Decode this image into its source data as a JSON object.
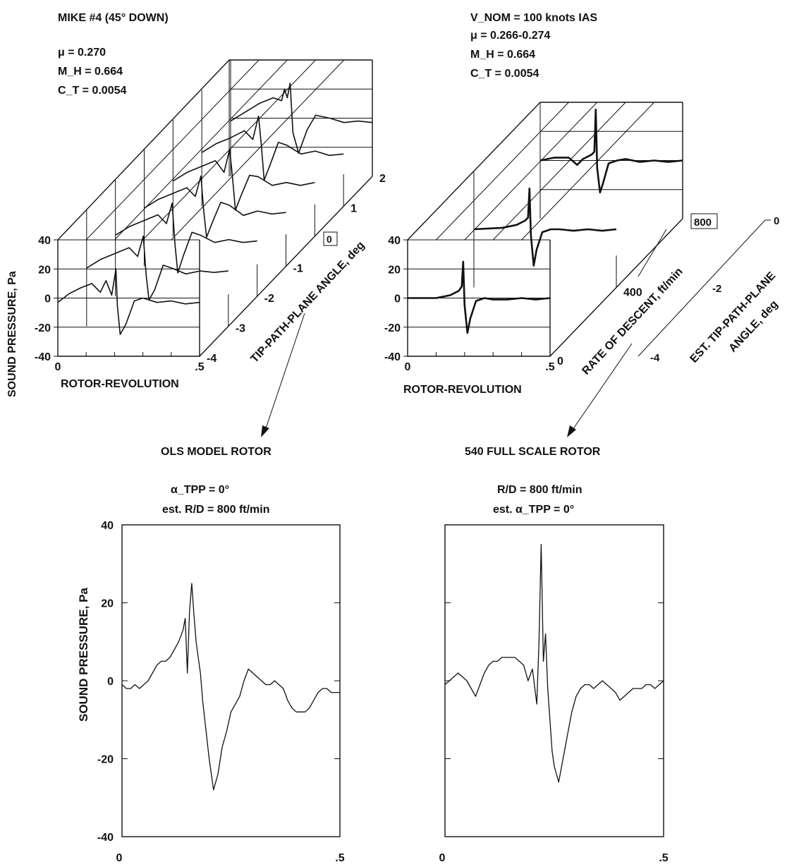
{
  "chart_data": [
    {
      "type": "line",
      "panel": "top-left-3d",
      "title": "MIKE #4 (45° DOWN)",
      "parameters": [
        "μ = 0.270",
        "M_H = 0.664",
        "C_T = 0.0054"
      ],
      "xlabel": "ROTOR-REVOLUTION",
      "ylabel": "SOUND PRESSURE, Pa",
      "zlabel": "TIP-PATH-PLANE ANGLE, deg",
      "xlim": [
        0,
        0.5
      ],
      "ylim": [
        -40,
        40
      ],
      "x_ticks": [
        "0",
        ".5"
      ],
      "y_ticks": [
        "40",
        "20",
        "0",
        "-20",
        "-40"
      ],
      "z_ticks": [
        "-4",
        "-3",
        "-2",
        "-1",
        "0",
        "1",
        "2"
      ],
      "highlight": "0",
      "series": [
        {
          "depth": -4,
          "x": [
            0,
            0.04,
            0.08,
            0.12,
            0.15,
            0.17,
            0.19,
            0.205,
            0.21,
            0.22,
            0.24,
            0.27,
            0.3,
            0.35,
            0.4,
            0.45,
            0.5
          ],
          "y": [
            -3,
            3,
            7,
            10,
            4,
            12,
            2,
            20,
            -5,
            -25,
            -18,
            -2,
            0,
            -3,
            -2,
            -4,
            -3
          ]
        },
        {
          "depth": -3,
          "x": [
            0,
            0.05,
            0.1,
            0.15,
            0.18,
            0.2,
            0.21,
            0.22,
            0.24,
            0.27,
            0.3,
            0.35,
            0.4,
            0.45,
            0.5
          ],
          "y": [
            0,
            6,
            10,
            14,
            8,
            22,
            -5,
            -22,
            -15,
            2,
            0,
            -4,
            -2,
            -3,
            -2
          ]
        },
        {
          "depth": -2,
          "x": [
            0,
            0.05,
            0.1,
            0.15,
            0.18,
            0.2,
            0.21,
            0.22,
            0.24,
            0.27,
            0.3,
            0.35,
            0.4,
            0.45,
            0.5
          ],
          "y": [
            2,
            8,
            12,
            16,
            10,
            24,
            -4,
            -24,
            -12,
            4,
            2,
            -3,
            -1,
            -3,
            -2
          ]
        },
        {
          "depth": -1,
          "x": [
            0,
            0.05,
            0.1,
            0.15,
            0.18,
            0.2,
            0.21,
            0.22,
            0.24,
            0.27,
            0.3,
            0.35,
            0.4,
            0.45,
            0.5
          ],
          "y": [
            0,
            6,
            10,
            14,
            8,
            22,
            -2,
            -20,
            -10,
            4,
            2,
            -5,
            -2,
            -4,
            -3
          ]
        },
        {
          "depth": 0,
          "x": [
            0,
            0.05,
            0.1,
            0.15,
            0.18,
            0.2,
            0.21,
            0.22,
            0.24,
            0.27,
            0.3,
            0.35,
            0.4,
            0.45,
            0.5
          ],
          "y": [
            -2,
            4,
            8,
            12,
            4,
            20,
            0,
            -22,
            -12,
            2,
            1,
            -5,
            -3,
            -5,
            -3
          ]
        },
        {
          "depth": 1,
          "x": [
            0,
            0.05,
            0.1,
            0.15,
            0.18,
            0.2,
            0.21,
            0.22,
            0.24,
            0.27,
            0.3,
            0.35,
            0.4,
            0.45,
            0.5
          ],
          "y": [
            -3,
            3,
            7,
            12,
            6,
            22,
            2,
            -22,
            -12,
            4,
            2,
            -4,
            -2,
            -5,
            -4
          ]
        },
        {
          "depth": 2,
          "x": [
            0,
            0.05,
            0.1,
            0.15,
            0.18,
            0.19,
            0.2,
            0.21,
            0.22,
            0.24,
            0.27,
            0.3,
            0.35,
            0.4,
            0.45,
            0.5
          ],
          "y": [
            -2,
            4,
            10,
            14,
            12,
            20,
            14,
            24,
            -10,
            -24,
            -8,
            2,
            0,
            -3,
            -2,
            -3
          ]
        }
      ]
    },
    {
      "type": "line",
      "panel": "top-right-3d",
      "parameters": [
        "V_NOM = 100 knots IAS",
        "μ = 0.266-0.274",
        "M_H = 0.664",
        "C_T = 0.0054"
      ],
      "xlabel": "ROTOR-REVOLUTION",
      "ylabel": "",
      "zlabel": "RATE OF DESCENT, ft/min",
      "z2label": "EST. TIP-PATH-PLANE ANGLE, deg",
      "xlim": [
        0,
        0.5
      ],
      "ylim": [
        -40,
        40
      ],
      "x_ticks": [
        "0",
        ".5"
      ],
      "y_ticks": [
        "40",
        "20",
        "0",
        "-20",
        "-40"
      ],
      "z_ticks": [
        "0",
        "400",
        "800"
      ],
      "z2_ticks": [
        "0",
        "-2",
        "-4"
      ],
      "highlight": "800",
      "series": [
        {
          "depth": 0,
          "x": [
            0,
            0.1,
            0.15,
            0.18,
            0.19,
            0.195,
            0.2,
            0.21,
            0.22,
            0.24,
            0.27,
            0.3,
            0.35,
            0.4,
            0.45,
            0.5
          ],
          "y": [
            0,
            0,
            2,
            5,
            8,
            25,
            -5,
            -24,
            -14,
            -2,
            0,
            -1,
            -1,
            0,
            -1,
            0
          ]
        },
        {
          "depth": 400,
          "x": [
            0,
            0.1,
            0.15,
            0.18,
            0.19,
            0.195,
            0.2,
            0.21,
            0.22,
            0.24,
            0.27,
            0.3,
            0.35,
            0.4,
            0.45,
            0.5
          ],
          "y": [
            0,
            1,
            3,
            6,
            8,
            28,
            -4,
            -25,
            -14,
            -2,
            0,
            0,
            -1,
            0,
            -1,
            0
          ]
        },
        {
          "depth": 800,
          "x": [
            0,
            0.05,
            0.1,
            0.13,
            0.15,
            0.18,
            0.19,
            0.195,
            0.2,
            0.21,
            0.22,
            0.24,
            0.27,
            0.3,
            0.35,
            0.4,
            0.45,
            0.5
          ],
          "y": [
            0,
            2,
            2,
            -3,
            1,
            4,
            6,
            35,
            -5,
            -22,
            -16,
            -2,
            0,
            1,
            -1,
            0,
            -1,
            0
          ]
        }
      ]
    },
    {
      "type": "line",
      "panel": "bottom-left",
      "title": "OLS MODEL ROTOR",
      "parameters": [
        "α_TPP = 0°",
        "est. R/D = 800 ft/min"
      ],
      "xlabel": "",
      "ylabel": "SOUND PRESSURE, Pa",
      "xlim": [
        0,
        0.5
      ],
      "ylim": [
        -40,
        40
      ],
      "x_ticks": [
        "0",
        ".5"
      ],
      "y_ticks": [
        "40",
        "20",
        "0",
        "-20",
        "-40"
      ],
      "series": [
        {
          "x": [
            0,
            0.01,
            0.02,
            0.03,
            0.04,
            0.05,
            0.06,
            0.07,
            0.08,
            0.09,
            0.1,
            0.11,
            0.12,
            0.13,
            0.14,
            0.145,
            0.15,
            0.155,
            0.16,
            0.165,
            0.17,
            0.175,
            0.18,
            0.185,
            0.19,
            0.2,
            0.21,
            0.22,
            0.23,
            0.24,
            0.25,
            0.26,
            0.27,
            0.28,
            0.29,
            0.3,
            0.31,
            0.32,
            0.33,
            0.34,
            0.35,
            0.36,
            0.37,
            0.38,
            0.39,
            0.4,
            0.41,
            0.42,
            0.43,
            0.44,
            0.45,
            0.46,
            0.47,
            0.48,
            0.49,
            0.5
          ],
          "y": [
            -1,
            -2,
            -2,
            -1,
            -2,
            -1,
            0,
            2,
            4,
            5,
            5,
            6,
            8,
            10,
            13,
            16,
            2,
            18,
            25,
            17,
            10,
            6,
            2,
            -5,
            -10,
            -20,
            -28,
            -24,
            -17,
            -13,
            -8,
            -6,
            -4,
            0,
            3,
            2,
            1,
            0,
            -1,
            -1,
            0,
            -1,
            -2,
            -5,
            -7,
            -8,
            -8,
            -8,
            -7,
            -5,
            -3,
            -2,
            -2,
            -3,
            -3,
            -3
          ]
        }
      ]
    },
    {
      "type": "line",
      "panel": "bottom-right",
      "title": "540 FULL SCALE ROTOR",
      "parameters": [
        "R/D = 800 ft/min",
        "est. α_TPP = 0°"
      ],
      "xlabel": "",
      "ylabel": "",
      "xlim": [
        0,
        0.5
      ],
      "ylim": [
        -40,
        40
      ],
      "x_ticks": [
        "0",
        ".5"
      ],
      "y_ticks": [],
      "series": [
        {
          "x": [
            0,
            0.01,
            0.02,
            0.03,
            0.04,
            0.05,
            0.06,
            0.07,
            0.08,
            0.09,
            0.1,
            0.11,
            0.12,
            0.13,
            0.14,
            0.15,
            0.16,
            0.17,
            0.18,
            0.19,
            0.2,
            0.21,
            0.215,
            0.22,
            0.225,
            0.23,
            0.235,
            0.24,
            0.245,
            0.25,
            0.26,
            0.27,
            0.28,
            0.29,
            0.3,
            0.31,
            0.32,
            0.33,
            0.34,
            0.35,
            0.36,
            0.37,
            0.38,
            0.39,
            0.4,
            0.41,
            0.42,
            0.43,
            0.44,
            0.45,
            0.46,
            0.47,
            0.48,
            0.49,
            0.5
          ],
          "y": [
            -1,
            0,
            1,
            2,
            1,
            0,
            -2,
            -4,
            -1,
            2,
            4,
            5,
            5,
            6,
            6,
            6,
            6,
            5,
            4,
            0,
            3,
            -6,
            10,
            35,
            5,
            12,
            -2,
            -10,
            -18,
            -22,
            -26,
            -20,
            -14,
            -8,
            -4,
            -2,
            -1,
            -1,
            -2,
            -1,
            0,
            -1,
            -2,
            -3,
            -5,
            -4,
            -3,
            -2,
            -2,
            -2,
            -1,
            -1,
            -2,
            -1,
            0
          ]
        }
      ]
    }
  ]
}
